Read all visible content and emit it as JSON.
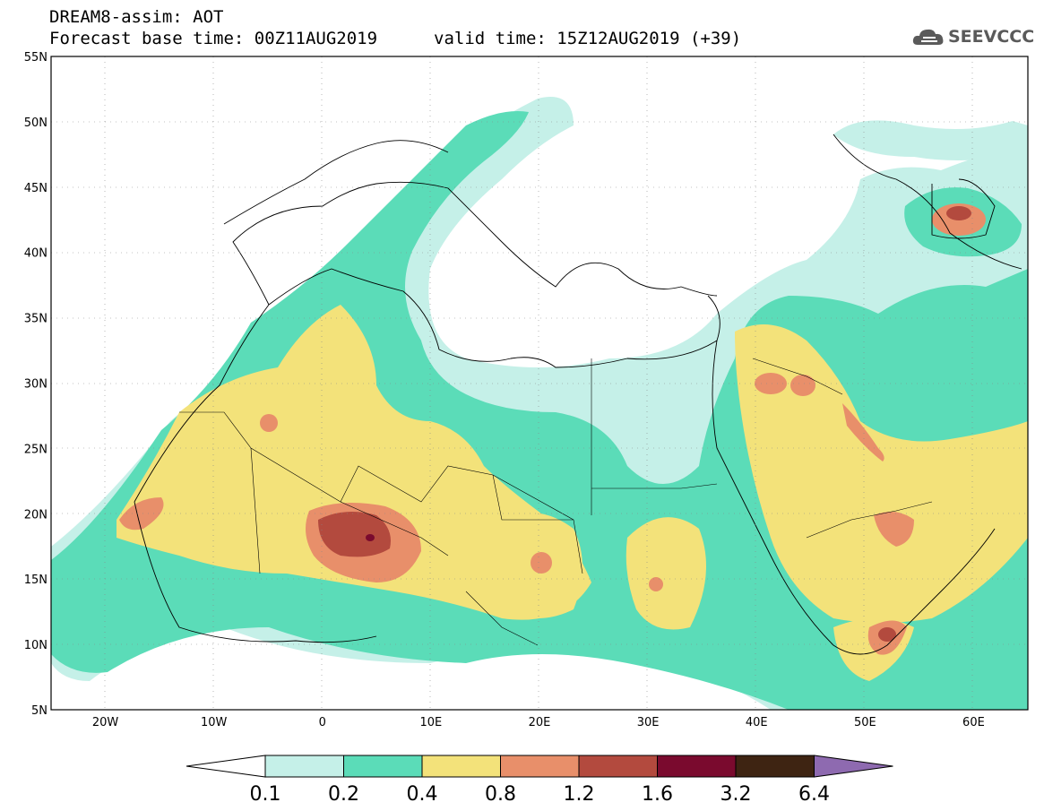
{
  "header": {
    "title_line1": "DREAM8-assim: AOT",
    "title_line2": "Forecast base time: 00Z11AUG2019",
    "valid_time": "valid time: 15Z12AUG2019 (+39)",
    "logo_text": "SEEVCCC"
  },
  "map": {
    "lon_range": [
      -25,
      65
    ],
    "lat_range": [
      5,
      55
    ],
    "lat_labels": [
      "55N",
      "50N",
      "45N",
      "40N",
      "35N",
      "30N",
      "25N",
      "20N",
      "15N",
      "10N",
      "5N"
    ],
    "lon_labels": [
      "20W",
      "10W",
      "0",
      "10E",
      "20E",
      "30E",
      "40E",
      "50E",
      "60E"
    ]
  },
  "colorbar": {
    "labels": [
      "0.1",
      "0.2",
      "0.4",
      "0.8",
      "1.2",
      "1.6",
      "3.2",
      "6.4"
    ],
    "colors": [
      "#c5f0e8",
      "#5bdcb8",
      "#f3e27a",
      "#e88f6a",
      "#b34a3e",
      "#7a0a2e",
      "#3e2412",
      "#8e6ab0"
    ]
  }
}
